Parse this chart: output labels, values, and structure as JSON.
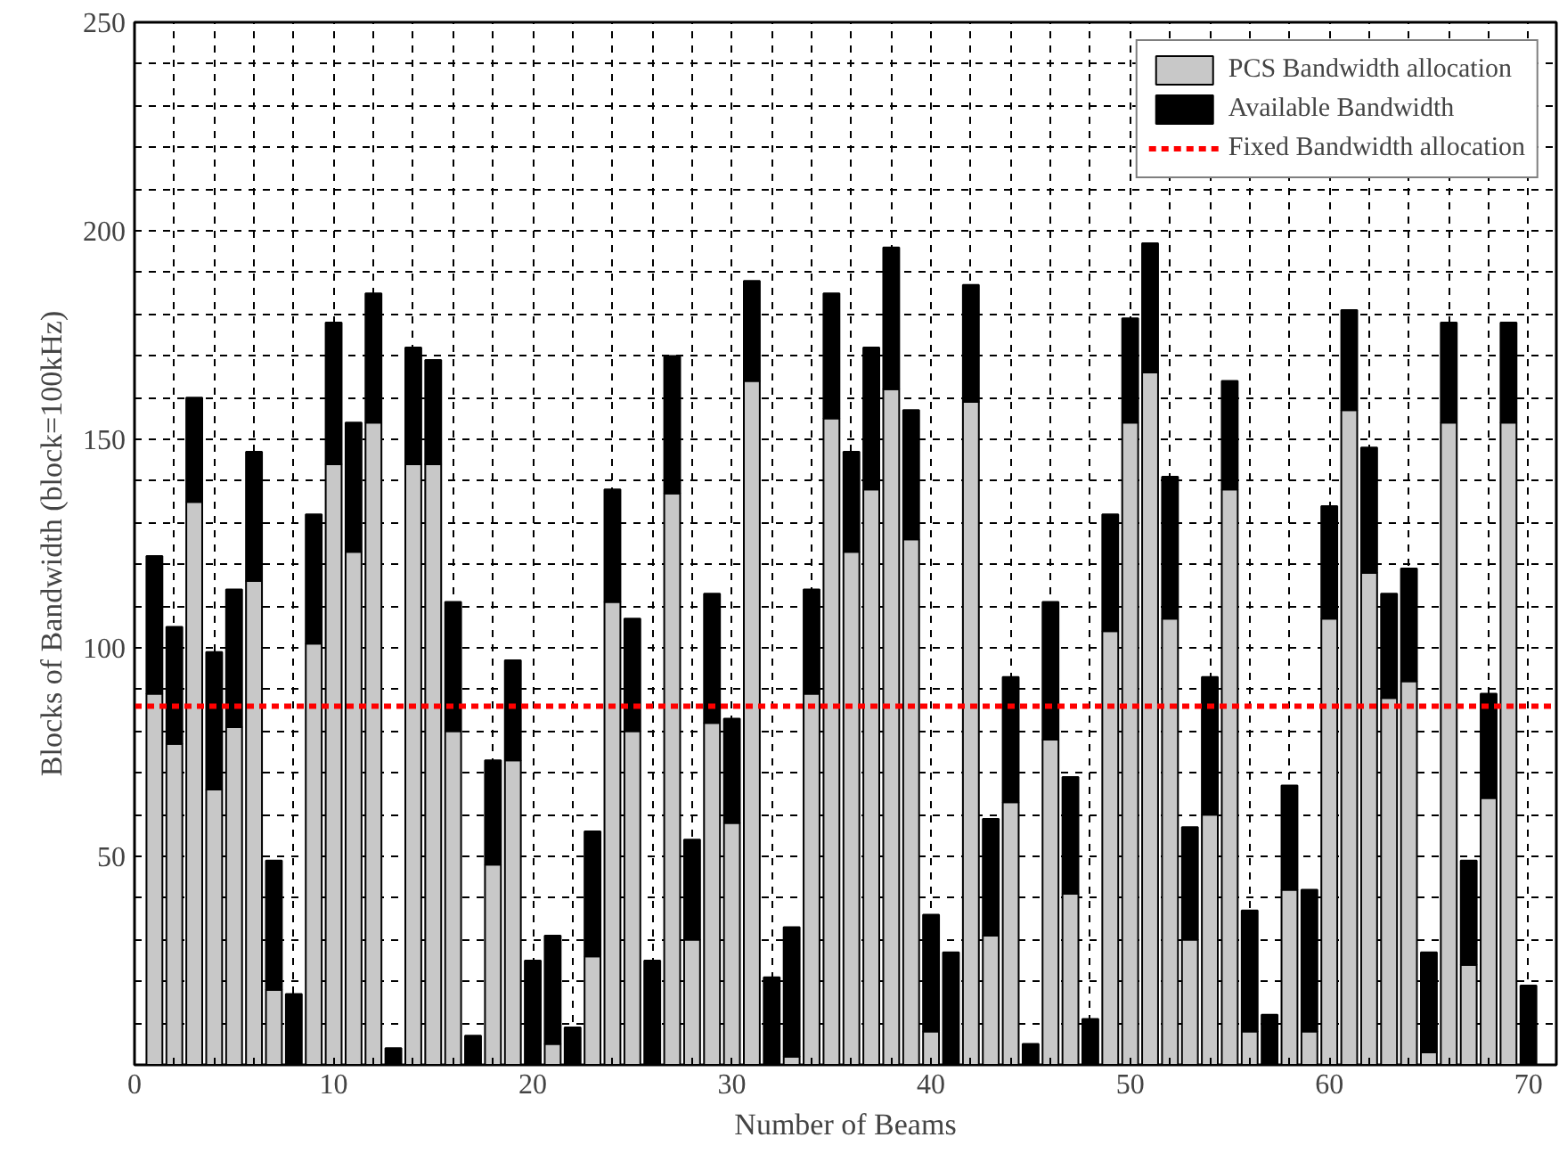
{
  "chart_data": {
    "type": "bar",
    "stacked": true,
    "xlabel": "Number of Beams",
    "ylabel": "Blocks of Bandwidth (block=100kHz)",
    "x": [
      1,
      2,
      3,
      4,
      5,
      6,
      7,
      8,
      9,
      10,
      11,
      12,
      13,
      14,
      15,
      16,
      17,
      18,
      19,
      20,
      21,
      22,
      23,
      24,
      25,
      26,
      27,
      28,
      29,
      30,
      31,
      32,
      33,
      34,
      35,
      36,
      37,
      38,
      39,
      40,
      41,
      42,
      43,
      44,
      45,
      46,
      47,
      48,
      49,
      50,
      51,
      52,
      53,
      54,
      55,
      56,
      57,
      58,
      59,
      60,
      61,
      62,
      63,
      64,
      65,
      66,
      67,
      68,
      69,
      70
    ],
    "series": [
      {
        "name": "PCS Bandwidth allocation",
        "color": "#c8c8c8",
        "values": [
          89,
          77,
          135,
          66,
          81,
          116,
          18,
          0,
          101,
          144,
          123,
          154,
          0,
          144,
          144,
          80,
          0,
          48,
          73,
          0,
          5,
          0,
          26,
          111,
          80,
          0,
          137,
          30,
          82,
          58,
          164,
          0,
          2,
          89,
          155,
          123,
          138,
          162,
          126,
          8,
          0,
          159,
          31,
          63,
          0,
          78,
          41,
          0,
          104,
          154,
          166,
          107,
          30,
          60,
          138,
          8,
          0,
          42,
          8,
          107,
          157,
          118,
          88,
          92,
          3,
          154,
          24,
          64,
          154,
          0
        ]
      },
      {
        "name": "Available Bandwidth",
        "color": "#000000",
        "values": [
          33,
          28,
          25,
          33,
          33,
          31,
          31,
          17,
          31,
          34,
          31,
          31,
          4,
          28,
          25,
          31,
          7,
          25,
          24,
          25,
          26,
          9,
          30,
          27,
          27,
          25,
          33,
          24,
          31,
          25,
          24,
          21,
          31,
          25,
          30,
          24,
          34,
          34,
          31,
          28,
          27,
          28,
          28,
          30,
          5,
          33,
          28,
          11,
          28,
          25,
          31,
          34,
          27,
          33,
          26,
          29,
          12,
          25,
          34,
          27,
          24,
          30,
          25,
          27,
          24,
          24,
          25,
          25,
          24,
          19
        ]
      }
    ],
    "ref_lines": [
      {
        "axis": "y",
        "value": 86,
        "label": "Fixed Bandwidth allocation",
        "color": "#ff0000",
        "line_style": "dashed"
      }
    ],
    "xlim": [
      0,
      71.4
    ],
    "ylim": [
      0,
      250
    ],
    "xticks": [
      0,
      {
        "value": 2,
        "label": null
      },
      {
        "value": 4,
        "label": null
      },
      {
        "value": 6,
        "label": null
      },
      {
        "value": 8,
        "label": null
      },
      10,
      {
        "value": 12,
        "label": null
      },
      {
        "value": 14,
        "label": null
      },
      {
        "value": 16,
        "label": null
      },
      {
        "value": 18,
        "label": null
      },
      20,
      {
        "value": 22,
        "label": null
      },
      {
        "value": 24,
        "label": null
      },
      {
        "value": 26,
        "label": null
      },
      {
        "value": 28,
        "label": null
      },
      30,
      {
        "value": 32,
        "label": null
      },
      {
        "value": 34,
        "label": null
      },
      {
        "value": 36,
        "label": null
      },
      {
        "value": 38,
        "label": null
      },
      40,
      {
        "value": 42,
        "label": null
      },
      {
        "value": 44,
        "label": null
      },
      {
        "value": 46,
        "label": null
      },
      {
        "value": 48,
        "label": null
      },
      50,
      {
        "value": 52,
        "label": null
      },
      {
        "value": 54,
        "label": null
      },
      {
        "value": 56,
        "label": null
      },
      {
        "value": 58,
        "label": null
      },
      60,
      {
        "value": 62,
        "label": null
      },
      {
        "value": 64,
        "label": null
      },
      {
        "value": 66,
        "label": null
      },
      {
        "value": 68,
        "label": null
      },
      70
    ],
    "yticks": [
      {
        "value": 10,
        "label": null
      },
      {
        "value": 20,
        "label": null
      },
      {
        "value": 30,
        "label": null
      },
      {
        "value": 40,
        "label": null
      },
      50,
      {
        "value": 60,
        "label": null
      },
      {
        "value": 70,
        "label": null
      },
      {
        "value": 80,
        "label": null
      },
      {
        "value": 90,
        "label": null
      },
      100,
      {
        "value": 110,
        "label": null
      },
      {
        "value": 120,
        "label": null
      },
      {
        "value": 130,
        "label": null
      },
      {
        "value": 140,
        "label": null
      },
      150,
      {
        "value": 160,
        "label": null
      },
      {
        "value": 170,
        "label": null
      },
      {
        "value": 180,
        "label": null
      },
      {
        "value": 190,
        "label": null
      },
      200,
      {
        "value": 210,
        "label": null
      },
      {
        "value": 220,
        "label": null
      },
      {
        "value": 230,
        "label": null
      },
      {
        "value": 240,
        "label": null
      },
      250
    ],
    "grid": true,
    "legend": "top right"
  }
}
